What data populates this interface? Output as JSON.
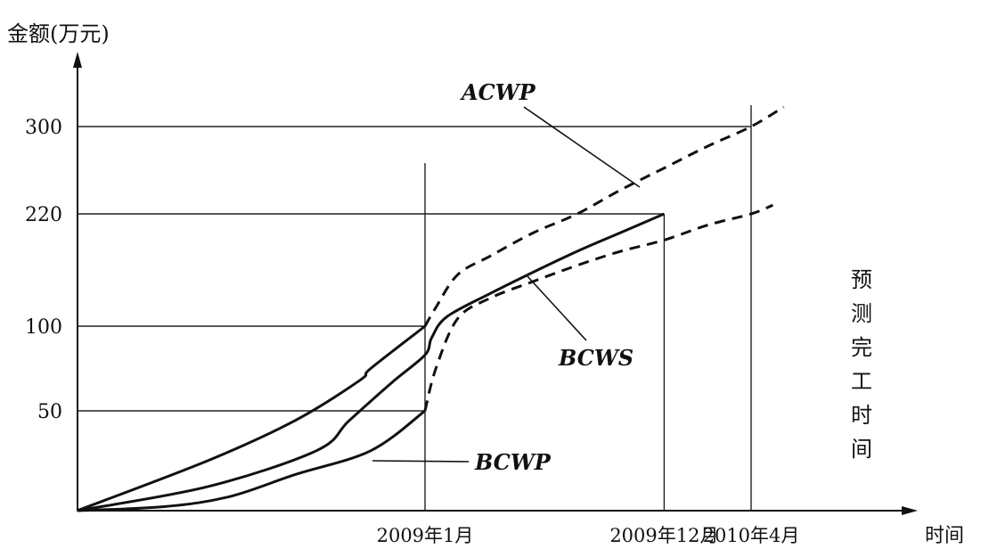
{
  "chart_data": {
    "type": "line",
    "ylabel": "金额(万元)",
    "xlabel": "时间",
    "y_ticks": [
      {
        "label": "50",
        "value": 50
      },
      {
        "label": "100",
        "value": 100
      },
      {
        "label": "220",
        "value": 220
      },
      {
        "label": "300",
        "value": 300
      }
    ],
    "x_ticks": [
      {
        "label": "2009年1月",
        "value": 0
      },
      {
        "label": "2009年12月",
        "value": 11
      },
      {
        "label": "2010年4月",
        "value": 15
      }
    ],
    "side_note": "预测完工时间",
    "series": [
      {
        "name": "ACWP",
        "actual": [
          [
            -16,
            0
          ],
          [
            -10,
            25
          ],
          [
            -6,
            45
          ],
          [
            -3,
            68
          ],
          [
            -2.5,
            75
          ],
          [
            0,
            100
          ]
        ],
        "forecast": [
          [
            0,
            100
          ],
          [
            0.5,
            120
          ],
          [
            1.5,
            155
          ],
          [
            3,
            175
          ],
          [
            5,
            200
          ],
          [
            7,
            220
          ],
          [
            9,
            242
          ],
          [
            11,
            262
          ],
          [
            13,
            282
          ],
          [
            15,
            300
          ],
          [
            16.5,
            318
          ]
        ]
      },
      {
        "name": "BCWS",
        "actual": [
          [
            -16,
            0
          ],
          [
            -10,
            12
          ],
          [
            -5,
            30
          ],
          [
            -3.5,
            45
          ],
          [
            -1.5,
            67
          ],
          [
            0,
            83
          ],
          [
            0.3,
            93
          ],
          [
            1,
            110
          ],
          [
            3,
            135
          ],
          [
            5,
            158
          ],
          [
            7,
            180
          ],
          [
            9,
            200
          ],
          [
            11,
            220
          ]
        ]
      },
      {
        "name": "BCWP",
        "actual": [
          [
            -16,
            0
          ],
          [
            -12,
            2
          ],
          [
            -9,
            7
          ],
          [
            -6,
            18
          ],
          [
            -2.5,
            30
          ],
          [
            0,
            50
          ]
        ],
        "forecast": [
          [
            0,
            50
          ],
          [
            0.5,
            75
          ],
          [
            1.5,
            108
          ],
          [
            3,
            130
          ],
          [
            5,
            148
          ],
          [
            7,
            165
          ],
          [
            9,
            180
          ],
          [
            11,
            192
          ],
          [
            13,
            208
          ],
          [
            15,
            220
          ],
          [
            16,
            228
          ]
        ]
      }
    ]
  }
}
